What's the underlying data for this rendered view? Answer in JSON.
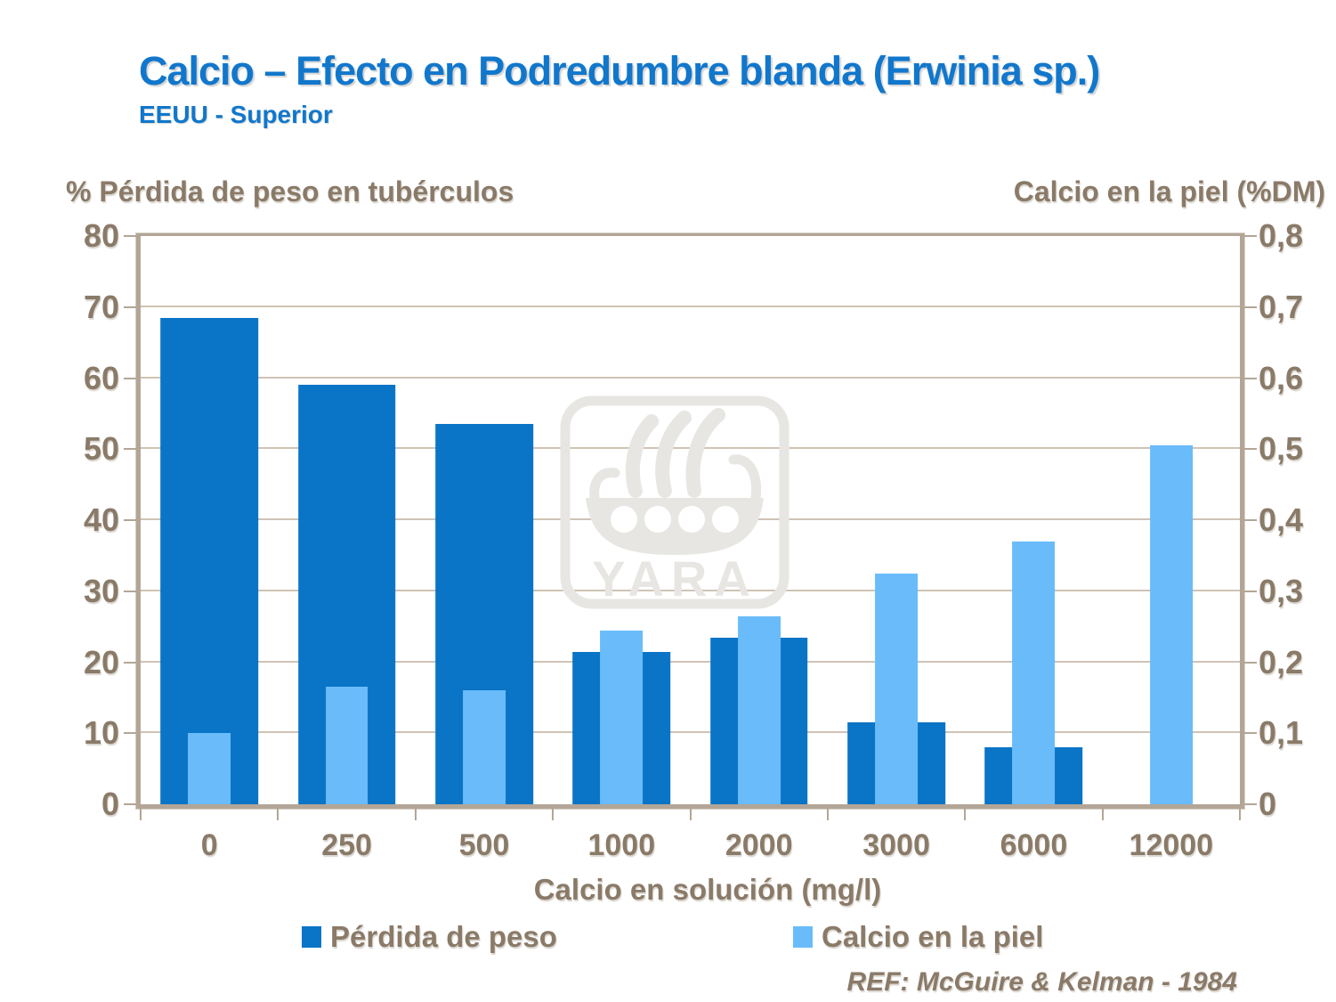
{
  "slide": {
    "title": "Calcio – Efecto en Podredumbre blanda (Erwinia sp.)",
    "subtitle": "EEUU - Superior",
    "reference": "REF: McGuire & Kelman - 1984",
    "watermark_text": "YARA"
  },
  "colors": {
    "title_blue": "#1177cc",
    "axis_text_brown": "#8a7a68",
    "dark_series_blue": "#0a74c6",
    "light_series_blue": "#69bcf9",
    "gridline": "#cfc3b4",
    "frame": "#b3a697",
    "watermark_gray": "#e8e6e3"
  },
  "legend": [
    {
      "label": "Pérdida de peso",
      "color": "#0a74c6"
    },
    {
      "label": "Calcio en la piel",
      "color": "#69bcf9"
    }
  ],
  "chart_data": {
    "type": "bar",
    "title": "Calcio – Efecto en Podredumbre blanda (Erwinia sp.)",
    "subtitle": "EEUU - Superior",
    "categories": [
      "0",
      "250",
      "500",
      "1000",
      "2000",
      "3000",
      "6000",
      "12000"
    ],
    "xlabel": "Calcio en solución (mg/l)",
    "left_axis": {
      "label": "% Pérdida de peso en tubérculos",
      "min": 0,
      "max": 80,
      "step": 10,
      "ticks": [
        "0",
        "10",
        "20",
        "30",
        "40",
        "50",
        "60",
        "70",
        "80"
      ]
    },
    "right_axis": {
      "label": "Calcio en la piel (%DM)",
      "min": 0,
      "max": 0.8,
      "step": 0.1,
      "ticks": [
        "0",
        "0,1",
        "0,2",
        "0,3",
        "0,4",
        "0,5",
        "0,6",
        "0,7",
        "0,8"
      ]
    },
    "series": [
      {
        "name": "Pérdida de peso",
        "axis": "left",
        "color": "#0a74c6",
        "values": [
          68.5,
          59,
          53.5,
          21.5,
          23.5,
          11.5,
          8,
          null
        ]
      },
      {
        "name": "Calcio en la piel",
        "axis": "right",
        "color": "#69bcf9",
        "values": [
          0.1,
          0.165,
          0.16,
          0.245,
          0.265,
          0.325,
          0.37,
          0.505
        ]
      }
    ],
    "grid": "horizontal",
    "legend_position": "bottom",
    "bar_style": "overlapped (narrow light bar centered in front of wide dark bar)"
  }
}
